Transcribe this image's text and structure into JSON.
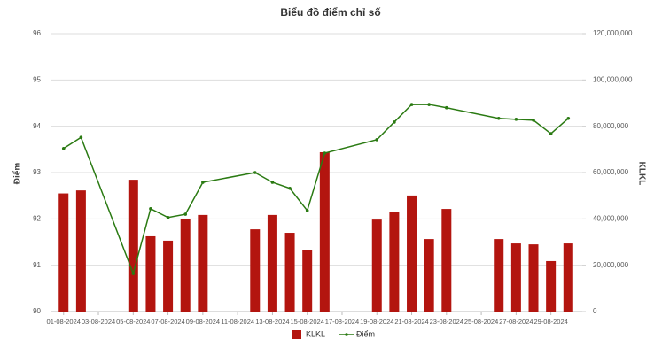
{
  "chart_data": {
    "type": "combo",
    "title": "Biểu đồ điểm chỉ số",
    "y_label": "Điểm",
    "y2_label": "KLKL",
    "x": [
      1,
      2,
      5,
      6,
      7,
      8,
      9,
      12,
      13,
      14,
      15,
      16,
      19,
      20,
      21,
      22,
      23,
      26,
      27,
      28,
      29,
      30
    ],
    "xlim": [
      0.3,
      30.8
    ],
    "xticks": [
      {
        "value": 1,
        "label": "01-08-2024"
      },
      {
        "value": 3,
        "label": "03-08-2024"
      },
      {
        "value": 5,
        "label": "05-08-2024"
      },
      {
        "value": 7,
        "label": "07-08-2024"
      },
      {
        "value": 9,
        "label": "09-08-2024"
      },
      {
        "value": 11,
        "label": "11-08-2024"
      },
      {
        "value": 13,
        "label": "13-08-2024"
      },
      {
        "value": 15,
        "label": "15-08-2024"
      },
      {
        "value": 17,
        "label": "17-08-2024"
      },
      {
        "value": 19,
        "label": "19-08-2024"
      },
      {
        "value": 21,
        "label": "21-08-2024"
      },
      {
        "value": 23,
        "label": "23-08-2024"
      },
      {
        "value": 25,
        "label": "25-08-2024"
      },
      {
        "value": 27,
        "label": "27-08-2024"
      },
      {
        "value": 29,
        "label": "29-08-2024"
      }
    ],
    "ylim": [
      90,
      96
    ],
    "yticks": [
      90,
      91,
      92,
      93,
      94,
      95,
      96
    ],
    "y2lim": [
      0,
      120000000
    ],
    "y2ticks": [
      0,
      {
        "value": 20000000,
        "label": "20,000,000"
      },
      {
        "value": 40000000,
        "label": "40,000,000"
      },
      {
        "value": 60000000,
        "label": "60,000,000"
      },
      {
        "value": 80000000,
        "label": "80,000,000"
      },
      {
        "value": 100000000,
        "label": "100,000,000"
      },
      {
        "value": 120000000,
        "label": "120,000,000"
      }
    ],
    "grid": true,
    "legend": "bottom",
    "series": [
      {
        "name": "KLKL",
        "type": "bar",
        "axis": "y2",
        "color": "#b3150f",
        "values": [
          51000000,
          52300000,
          56900000,
          32500000,
          30600000,
          40100000,
          41700000,
          35500000,
          41700000,
          34000000,
          26700000,
          68800000,
          39700000,
          42800000,
          50100000,
          31300000,
          44300000,
          31300000,
          29400000,
          29000000,
          21800000,
          29400000
        ]
      },
      {
        "name": "Điểm",
        "type": "line",
        "color": "#2a7a12",
        "values": [
          93.52,
          93.76,
          90.82,
          92.22,
          92.03,
          92.1,
          92.79,
          93.0,
          92.79,
          92.66,
          92.18,
          93.42,
          93.71,
          94.09,
          94.47,
          94.47,
          94.4,
          94.17,
          94.15,
          94.13,
          93.84,
          94.17
        ]
      }
    ]
  }
}
